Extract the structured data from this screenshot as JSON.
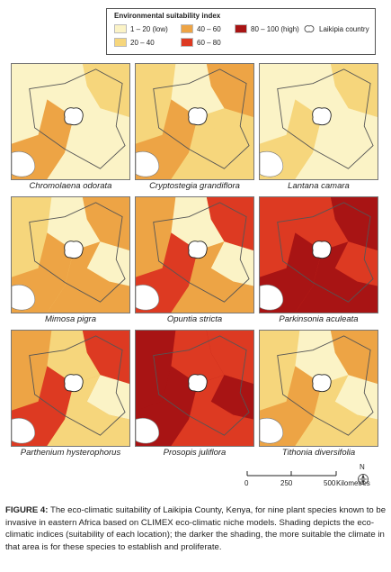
{
  "legend": {
    "title": "Environmental suitability index",
    "classes": [
      {
        "label": "1 – 20 (low)",
        "color": "#fbf3c6"
      },
      {
        "label": "20 – 40",
        "color": "#f6d67c"
      },
      {
        "label": "40 – 60",
        "color": "#eda445"
      },
      {
        "label": "60 – 80",
        "color": "#dd3a22"
      },
      {
        "label": "80 – 100 (high)",
        "color": "#a81414"
      }
    ],
    "county_label": "Laikipia country"
  },
  "maps": [
    {
      "species": "Chromolaena odorata",
      "profile": [
        1,
        2,
        1,
        1,
        3,
        1
      ]
    },
    {
      "species": "Cryptostegia grandiflora",
      "profile": [
        2,
        3,
        1,
        2,
        3,
        2
      ]
    },
    {
      "species": "Lantana camara",
      "profile": [
        1,
        2,
        1,
        1,
        2,
        1
      ]
    },
    {
      "species": "Mimosa pigra",
      "profile": [
        2,
        3,
        1,
        1,
        3,
        3
      ]
    },
    {
      "species": "Opuntia stricta",
      "profile": [
        3,
        4,
        1,
        1,
        4,
        3
      ]
    },
    {
      "species": "Parkinsonia aculeata",
      "profile": [
        4,
        5,
        4,
        4,
        5,
        5
      ]
    },
    {
      "species": "Parthenium hysterophorus",
      "profile": [
        3,
        4,
        2,
        1,
        4,
        2
      ]
    },
    {
      "species": "Prosopis juliflora",
      "profile": [
        5,
        4,
        4,
        5,
        5,
        4
      ]
    },
    {
      "species": "Tithonia diversifolia",
      "profile": [
        2,
        3,
        1,
        1,
        3,
        2
      ]
    }
  ],
  "scale": {
    "ticks": [
      "0",
      "250",
      "500"
    ],
    "unit": "Kilometres"
  },
  "north_label": "N",
  "caption": {
    "label": "FIGURE 4:",
    "text": "The eco-climatic suitability of Laikipia County, Kenya, for nine plant species known to be invasive in eastern Africa based on CLIMEX eco-climatic niche models. Shading depicts the eco-climatic indices (suitability of each location); the darker the shading, the more suitable the climate in that area is for these species to establish and proliferate."
  }
}
